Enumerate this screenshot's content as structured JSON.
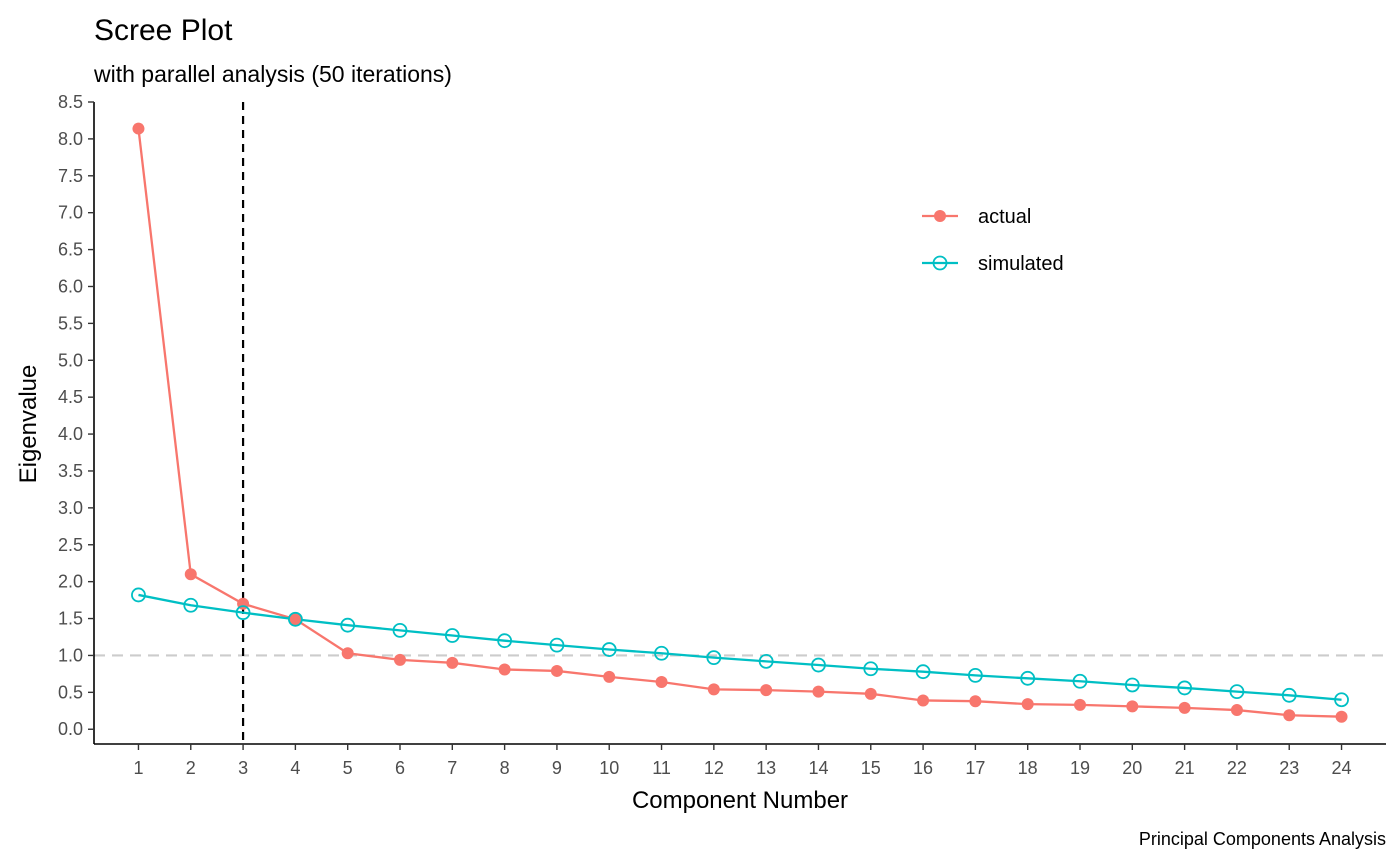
{
  "chart_data": {
    "type": "line",
    "title": "Scree Plot",
    "subtitle": "with parallel analysis (50 iterations)",
    "xlabel": "Component Number",
    "ylabel": "Eigenvalue",
    "caption": "Principal Components Analysis",
    "x": [
      1,
      2,
      3,
      4,
      5,
      6,
      7,
      8,
      9,
      10,
      11,
      12,
      13,
      14,
      15,
      16,
      17,
      18,
      19,
      20,
      21,
      22,
      23,
      24
    ],
    "xlim": [
      0.15,
      24.85
    ],
    "ylim": [
      -0.2,
      8.5
    ],
    "yticks": [
      0.0,
      0.5,
      1.0,
      1.5,
      2.0,
      2.5,
      3.0,
      3.5,
      4.0,
      4.5,
      5.0,
      5.5,
      6.0,
      6.5,
      7.0,
      7.5,
      8.0,
      8.5
    ],
    "ytick_labels": [
      "0.0",
      "0.5",
      "1.0",
      "1.5",
      "2.0",
      "2.5",
      "3.0",
      "3.5",
      "4.0",
      "4.5",
      "5.0",
      "5.5",
      "6.0",
      "6.5",
      "7.0",
      "7.5",
      "8.0",
      "8.5"
    ],
    "xtick_labels": [
      "1",
      "2",
      "3",
      "4",
      "5",
      "6",
      "7",
      "8",
      "9",
      "10",
      "11",
      "12",
      "13",
      "14",
      "15",
      "16",
      "17",
      "18",
      "19",
      "20",
      "21",
      "22",
      "23",
      "24"
    ],
    "reference_hline": 1.0,
    "reference_vline": 3,
    "grid": false,
    "legend_position": "top-right",
    "series": [
      {
        "name": "actual",
        "color": "#F8766D",
        "marker": "filled-circle",
        "values": [
          8.14,
          2.1,
          1.7,
          1.49,
          1.03,
          0.94,
          0.9,
          0.81,
          0.79,
          0.71,
          0.64,
          0.54,
          0.53,
          0.51,
          0.48,
          0.39,
          0.38,
          0.34,
          0.33,
          0.31,
          0.29,
          0.26,
          0.19,
          0.17
        ]
      },
      {
        "name": "simulated",
        "color": "#00BFC4",
        "marker": "open-circle",
        "values": [
          1.82,
          1.68,
          1.58,
          1.49,
          1.41,
          1.34,
          1.27,
          1.2,
          1.14,
          1.08,
          1.03,
          0.97,
          0.92,
          0.87,
          0.82,
          0.78,
          0.73,
          0.69,
          0.65,
          0.6,
          0.56,
          0.51,
          0.46,
          0.4
        ]
      }
    ]
  }
}
